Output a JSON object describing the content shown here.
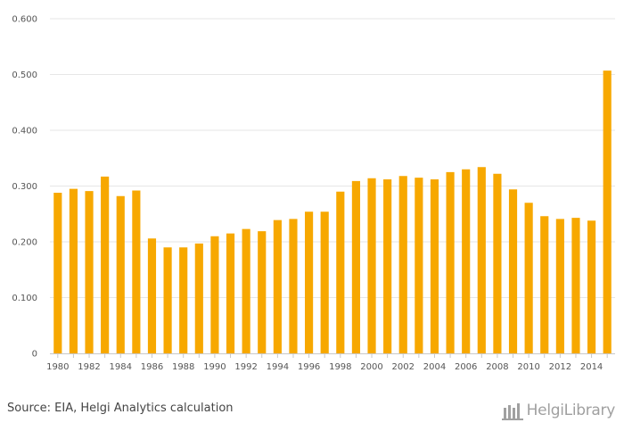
{
  "chart_data": {
    "type": "bar",
    "title": "",
    "xlabel": "",
    "ylabel": "",
    "ylim": [
      0,
      0.6
    ],
    "yticks": [
      "0",
      "0.100",
      "0.200",
      "0.300",
      "0.400",
      "0.500",
      "0.600"
    ],
    "categories": [
      "1980",
      "1981",
      "1982",
      "1983",
      "1984",
      "1985",
      "1986",
      "1987",
      "1988",
      "1989",
      "1990",
      "1991",
      "1992",
      "1993",
      "1994",
      "1995",
      "1996",
      "1997",
      "1998",
      "1999",
      "2000",
      "2001",
      "2002",
      "2003",
      "2004",
      "2005",
      "2006",
      "2007",
      "2008",
      "2009",
      "2010",
      "2011",
      "2012",
      "2013",
      "2014",
      "2015"
    ],
    "xtick_labels": [
      "1980",
      "1982",
      "1984",
      "1986",
      "1988",
      "1990",
      "1992",
      "1994",
      "1996",
      "1998",
      "2000",
      "2002",
      "2004",
      "2006",
      "2008",
      "2010",
      "2012",
      "2014"
    ],
    "values": [
      0.288,
      0.295,
      0.291,
      0.317,
      0.282,
      0.292,
      0.206,
      0.19,
      0.19,
      0.197,
      0.21,
      0.215,
      0.223,
      0.219,
      0.239,
      0.241,
      0.254,
      0.254,
      0.29,
      0.309,
      0.314,
      0.312,
      0.318,
      0.315,
      0.312,
      0.325,
      0.33,
      0.334,
      0.322,
      0.294,
      0.27,
      0.246,
      0.241,
      0.243,
      0.238,
      0.507
    ],
    "bar_color": "#f7a800",
    "grid_color": "#e6e6e6",
    "axis_color": "#c8c8c8"
  },
  "footer": {
    "source": "Source: EIA, Helgi Analytics calculation",
    "brand": "HelgiLibrary"
  }
}
